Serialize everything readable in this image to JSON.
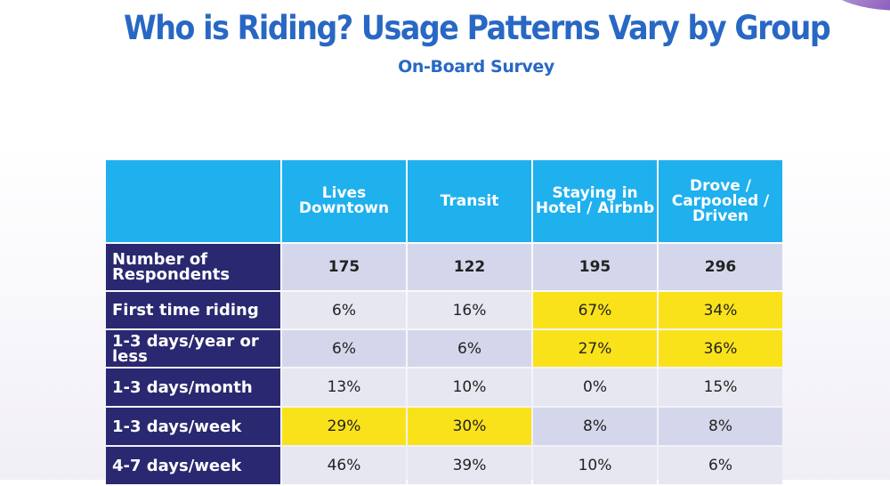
{
  "title": "Who is Riding? Usage Patterns Vary by Group",
  "subtitle": "On-Board Survey",
  "colors": {
    "title": "#2868c4",
    "header_bg": "#1fb0ee",
    "row_label_bg": "#2a2870",
    "highlight": "#fae21a",
    "cell_dark": "#d4d7ec",
    "cell_light": "#e6e7f1"
  },
  "table": {
    "columns": [
      "",
      "Lives Downtown",
      "Transit",
      "Staying in Hotel / Airbnb",
      "Drove / Carpooled / Driven"
    ],
    "rows": [
      {
        "label": "Number of Respondents",
        "values": [
          "175",
          "122",
          "195",
          "296"
        ],
        "highlight": [
          false,
          false,
          false,
          false
        ]
      },
      {
        "label": "First time riding",
        "values": [
          "6%",
          "16%",
          "67%",
          "34%"
        ],
        "highlight": [
          false,
          false,
          true,
          true
        ]
      },
      {
        "label": "1-3 days/year or less",
        "values": [
          "6%",
          "6%",
          "27%",
          "36%"
        ],
        "highlight": [
          false,
          false,
          true,
          true
        ]
      },
      {
        "label": "1-3 days/month",
        "values": [
          "13%",
          "10%",
          "0%",
          "15%"
        ],
        "highlight": [
          false,
          false,
          false,
          false
        ]
      },
      {
        "label": "1-3 days/week",
        "values": [
          "29%",
          "30%",
          "8%",
          "8%"
        ],
        "highlight": [
          true,
          true,
          false,
          false
        ]
      },
      {
        "label": "4-7 days/week",
        "values": [
          "46%",
          "39%",
          "10%",
          "6%"
        ],
        "highlight": [
          false,
          false,
          false,
          false
        ]
      }
    ]
  }
}
